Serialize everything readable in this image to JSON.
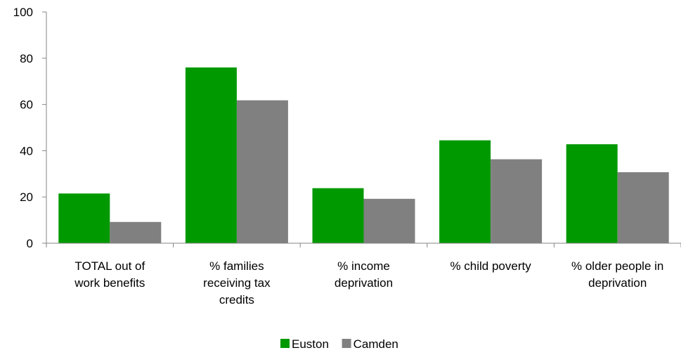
{
  "chart_data": {
    "type": "bar",
    "categories": [
      [
        "TOTAL out of",
        "work benefits"
      ],
      [
        "% families",
        "receiving tax",
        "credits"
      ],
      [
        "% income",
        "deprivation"
      ],
      [
        "% child poverty"
      ],
      [
        "% older people in",
        "deprivation"
      ]
    ],
    "series": [
      {
        "name": "Euston",
        "color": "#009900",
        "values": [
          21.5,
          76,
          23.8,
          44.5,
          42.8
        ]
      },
      {
        "name": "Camden",
        "color": "#808080",
        "values": [
          9.2,
          61.8,
          19.2,
          36.3,
          30.7
        ]
      }
    ],
    "yticks": [
      0,
      20,
      40,
      60,
      80,
      100
    ],
    "ylim": [
      0,
      100
    ],
    "xlabel": "",
    "ylabel": "",
    "grid": false,
    "legend_position": "bottom-center"
  }
}
